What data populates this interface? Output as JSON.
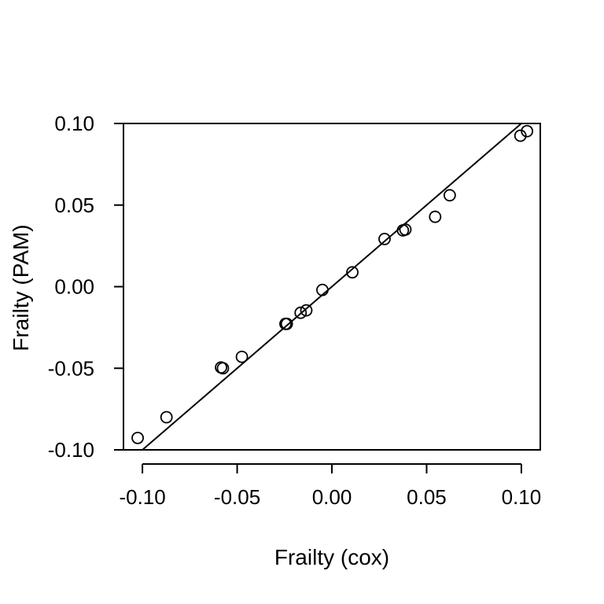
{
  "chart_data": {
    "type": "scatter",
    "title": "",
    "xlabel": "Frailty (cox)",
    "ylabel": "Frailty (PAM)",
    "xlim": [
      -0.11,
      0.11
    ],
    "ylim": [
      -0.1,
      0.1
    ],
    "x_ticks": [
      -0.1,
      -0.05,
      0.0,
      0.05,
      0.1
    ],
    "y_ticks": [
      -0.1,
      -0.05,
      0.0,
      0.05,
      0.1
    ],
    "x_tick_labels": [
      "-0.10",
      "-0.05",
      "0.00",
      "0.05",
      "0.10"
    ],
    "y_tick_labels": [
      "-0.10",
      "-0.05",
      "0.00",
      "0.05",
      "0.10"
    ],
    "grid": false,
    "marker": "open-circle",
    "reference_line": {
      "intercept": 0,
      "slope": 1
    },
    "points": [
      {
        "x": -0.1025,
        "y": -0.0927
      },
      {
        "x": -0.0873,
        "y": -0.08
      },
      {
        "x": -0.0585,
        "y": -0.0495
      },
      {
        "x": -0.0575,
        "y": -0.05
      },
      {
        "x": -0.0475,
        "y": -0.043
      },
      {
        "x": -0.0245,
        "y": -0.0228
      },
      {
        "x": -0.0238,
        "y": -0.0228
      },
      {
        "x": -0.0165,
        "y": -0.016
      },
      {
        "x": -0.0135,
        "y": -0.0145
      },
      {
        "x": -0.005,
        "y": -0.002
      },
      {
        "x": 0.0108,
        "y": 0.0088
      },
      {
        "x": 0.0278,
        "y": 0.0292
      },
      {
        "x": 0.0375,
        "y": 0.0345
      },
      {
        "x": 0.0388,
        "y": 0.035
      },
      {
        "x": 0.0545,
        "y": 0.0428
      },
      {
        "x": 0.0622,
        "y": 0.056
      },
      {
        "x": 0.0995,
        "y": 0.0925
      },
      {
        "x": 0.103,
        "y": 0.0953
      }
    ]
  }
}
